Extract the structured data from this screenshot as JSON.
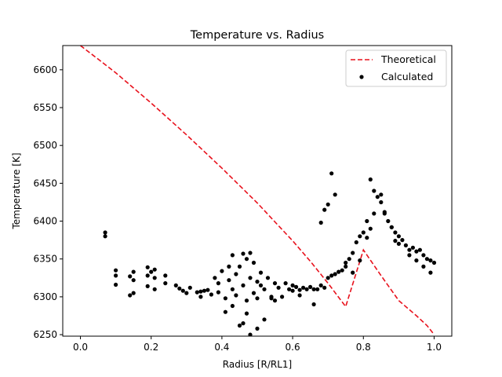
{
  "chart_data": {
    "type": "scatter",
    "title": "Temperature vs. Radius",
    "xlabel": "Radius [R/RL1]",
    "ylabel": "Temperature [K]",
    "xlim": [
      -0.05,
      1.05
    ],
    "ylim": [
      6248,
      6632
    ],
    "x_ticks": [
      0.0,
      0.2,
      0.4,
      0.6,
      0.8,
      1.0
    ],
    "x_tick_labels": [
      "0.0",
      "0.2",
      "0.4",
      "0.6",
      "0.8",
      "1.0"
    ],
    "y_ticks": [
      6250,
      6300,
      6350,
      6400,
      6450,
      6500,
      6550,
      6600
    ],
    "y_tick_labels": [
      "6250",
      "6300",
      "6350",
      "6400",
      "6450",
      "6500",
      "6550",
      "6600"
    ],
    "grid": false,
    "legend_position": "top-right",
    "colors": {
      "theoretical": "#e8111c",
      "calculated": "#000000"
    },
    "series": [
      {
        "name": "Theoretical",
        "style": "dashed-line",
        "x": [
          0.0,
          0.05,
          0.1,
          0.15,
          0.2,
          0.25,
          0.3,
          0.35,
          0.4,
          0.45,
          0.5,
          0.55,
          0.6,
          0.65,
          0.7,
          0.75,
          0.8,
          0.85,
          0.9,
          0.95,
          0.98,
          1.0
        ],
        "y": [
          6632,
          6614,
          6596,
          6576,
          6556,
          6535,
          6514,
          6492,
          6470,
          6447,
          6424,
          6399,
          6374,
          6347,
          6318,
          6287,
          6362,
          6328,
          6295,
          6275,
          6262,
          6250
        ]
      },
      {
        "name": "Calculated",
        "style": "scatter",
        "x": [
          0.07,
          0.07,
          0.1,
          0.1,
          0.1,
          0.14,
          0.14,
          0.15,
          0.15,
          0.15,
          0.19,
          0.19,
          0.19,
          0.2,
          0.21,
          0.21,
          0.21,
          0.24,
          0.24,
          0.27,
          0.28,
          0.29,
          0.3,
          0.31,
          0.33,
          0.34,
          0.34,
          0.35,
          0.36,
          0.37,
          0.38,
          0.39,
          0.39,
          0.4,
          0.41,
          0.42,
          0.42,
          0.43,
          0.43,
          0.44,
          0.44,
          0.45,
          0.46,
          0.46,
          0.47,
          0.47,
          0.48,
          0.48,
          0.49,
          0.49,
          0.5,
          0.5,
          0.51,
          0.51,
          0.52,
          0.53,
          0.54,
          0.55,
          0.55,
          0.56,
          0.57,
          0.58,
          0.59,
          0.6,
          0.61,
          0.62,
          0.63,
          0.64,
          0.65,
          0.66,
          0.67,
          0.68,
          0.69,
          0.7,
          0.71,
          0.72,
          0.73,
          0.74,
          0.75,
          0.76,
          0.77,
          0.78,
          0.79,
          0.8,
          0.81,
          0.82,
          0.83,
          0.84,
          0.85,
          0.86,
          0.87,
          0.88,
          0.89,
          0.9,
          0.91,
          0.92,
          0.93,
          0.94,
          0.95,
          0.96,
          0.97,
          0.98,
          0.99,
          1.0,
          0.71,
          0.72,
          0.7,
          0.69,
          0.68,
          0.75,
          0.77,
          0.79,
          0.81,
          0.82,
          0.83,
          0.85,
          0.86,
          0.88,
          0.89,
          0.9,
          0.93,
          0.95,
          0.97,
          0.99,
          0.45,
          0.47,
          0.5,
          0.52,
          0.54,
          0.41,
          0.43,
          0.46,
          0.48,
          0.6,
          0.62,
          0.66
        ],
        "y": [
          6385,
          6380,
          6335,
          6328,
          6316,
          6327,
          6302,
          6333,
          6322,
          6305,
          6339,
          6328,
          6314,
          6333,
          6336,
          6325,
          6310,
          6328,
          6318,
          6315,
          6311,
          6308,
          6305,
          6312,
          6306,
          6300,
          6307,
          6308,
          6309,
          6303,
          6325,
          6318,
          6306,
          6334,
          6298,
          6340,
          6322,
          6355,
          6310,
          6330,
          6302,
          6340,
          6357,
          6315,
          6350,
          6295,
          6358,
          6325,
          6345,
          6305,
          6320,
          6298,
          6315,
          6332,
          6310,
          6325,
          6300,
          6295,
          6318,
          6312,
          6300,
          6318,
          6310,
          6315,
          6313,
          6309,
          6312,
          6310,
          6313,
          6310,
          6310,
          6315,
          6312,
          6325,
          6328,
          6330,
          6333,
          6335,
          6340,
          6350,
          6358,
          6372,
          6380,
          6385,
          6400,
          6390,
          6410,
          6432,
          6435,
          6410,
          6400,
          6392,
          6385,
          6380,
          6375,
          6368,
          6362,
          6365,
          6360,
          6362,
          6355,
          6350,
          6348,
          6345,
          6463,
          6435,
          6422,
          6415,
          6398,
          6345,
          6332,
          6348,
          6378,
          6455,
          6440,
          6425,
          6412,
          6392,
          6374,
          6370,
          6355,
          6348,
          6340,
          6332,
          6262,
          6278,
          6258,
          6270,
          6298,
          6280,
          6288,
          6265,
          6250,
          6308,
          6302,
          6290
        ]
      }
    ]
  }
}
